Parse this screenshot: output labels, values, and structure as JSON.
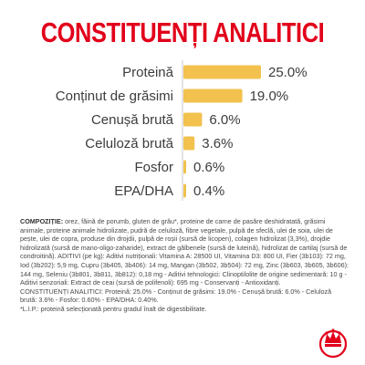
{
  "title": "CONSTITUENȚI ANALITICI",
  "colors": {
    "title": "#e2001a",
    "bar": "#f2c14e",
    "axis": "#c9c9c9",
    "text": "#3c3c3c"
  },
  "chart_data": {
    "type": "bar",
    "orientation": "horizontal",
    "categories": [
      "Proteină",
      "Conținut de grăsimi",
      "Cenușă brută",
      "Celuloză brută",
      "Fosfor",
      "EPA/DHA"
    ],
    "values": [
      25.0,
      19.0,
      6.0,
      3.6,
      0.6,
      0.4
    ],
    "value_labels": [
      "25.0%",
      "19.0%",
      "6.0%",
      "3.6%",
      "0.6%",
      "0.4%"
    ],
    "xlim": [
      0,
      25
    ],
    "grid": false,
    "title": "CONSTITUENȚI ANALITICI"
  },
  "composition": {
    "heading": "COMPOZIȚIE:",
    "body": " orez, făină de porumb, gluten de grâu*, proteine de carne de pasăre deshidratată, grăsimi animale, proteine animale hidrolizate, pudră de celuloză, fibre vegetale, pulpă de sfeclă, ulei de soia, ulei de pește, ulei de copra, produse din drojdii, pulpă de roșii (sursă de licopen), colagen hidrolizat (3,3%), drojdie hidrolizată (sursă de mano-oligo-zaharide), extract de gălbenele (sursă de luteină), hidrolizat de cartilaj (sursă de condroitină). ADITIVI (pe kg): Aditivi nutriționali: Vitamina A: 28500 UI, Vitamina D3: 800 UI, Fier (3b103): 72 mg, Iod (3b202): 5,9 mg, Cupru (3b405, 3b406): 14 mg, Mangan (3b502, 3b504): 72 mg, Zinc (3b603, 3b605, 3b606): 144 mg, Seleniu (3b801, 3b811, 3b812): 0,18 mg - Aditivi tehnologici: Clinoptilolite de origine sedimentară: 10 g - Aditivi senzoriali: Extract de ceai (sursă de polifenoli): 695 mg - Conservanți - Antioxidanți.",
    "analytical": "CONSTITUENȚI ANALITICI: Proteină: 25.0% - Conținut de grăsimi: 19.0% - Cenușă brută: 6.0% - Celuloză brută: 3.6% - Fosfor: 0.60% - EPA/DHA: 0.40%.",
    "note": "*L.I.P.: proteină selecționată pentru gradul înalt de digestibilitate."
  },
  "logo": {
    "name": "royal-canin-crown-logo"
  }
}
